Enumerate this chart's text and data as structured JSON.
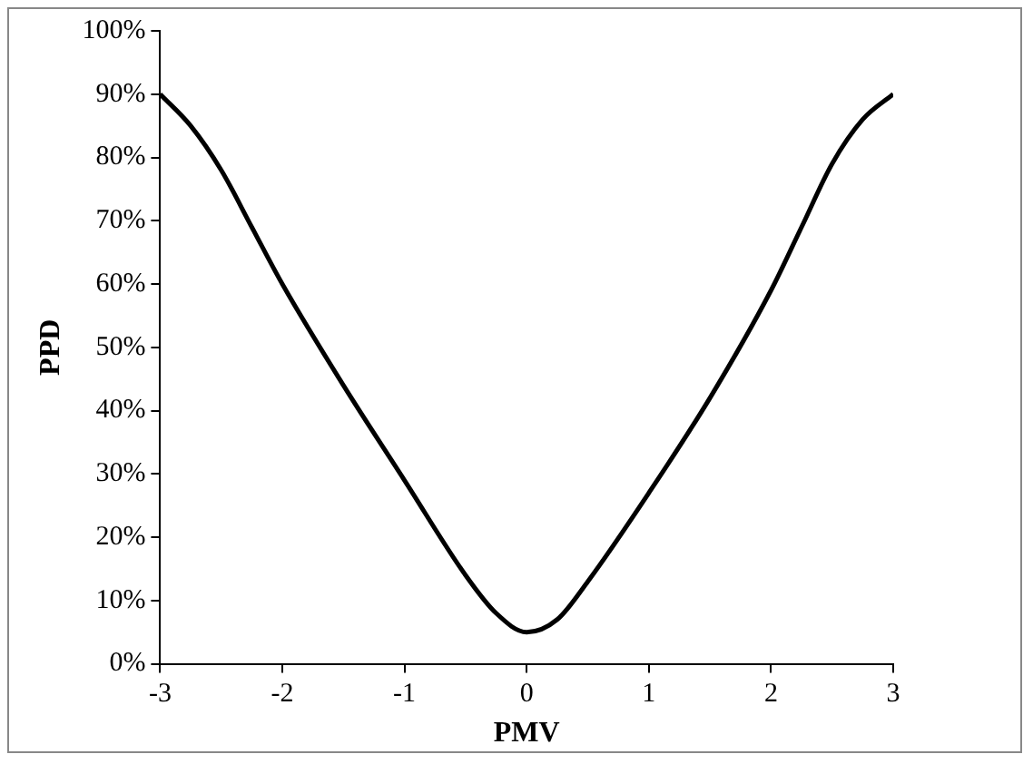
{
  "chart_data": {
    "type": "line",
    "xlabel": "PMV",
    "ylabel": "PPD",
    "x": [
      -3,
      -2.75,
      -2.5,
      -2.25,
      -2,
      -1.5,
      -1,
      -0.5,
      -0.25,
      0,
      0.25,
      0.5,
      1,
      1.5,
      2,
      2.25,
      2.5,
      2.75,
      3
    ],
    "series": [
      {
        "color": "#000000",
        "values": [
          90,
          85,
          78,
          69,
          60,
          44,
          29,
          14,
          8,
          5,
          7,
          13,
          27,
          42,
          59,
          69,
          79,
          86,
          90
        ]
      }
    ],
    "xlim": [
      -3,
      3
    ],
    "xticks": [
      -3,
      -2,
      -1,
      0,
      1,
      2,
      3
    ],
    "ylim": [
      0,
      100
    ],
    "yticks": [
      {
        "value": 0,
        "label": "0%"
      },
      {
        "value": 10,
        "label": "10%"
      },
      {
        "value": 20,
        "label": "20%"
      },
      {
        "value": 30,
        "label": "30%"
      },
      {
        "value": 40,
        "label": "40%"
      },
      {
        "value": 50,
        "label": "50%"
      },
      {
        "value": 60,
        "label": "60%"
      },
      {
        "value": 70,
        "label": "70%"
      },
      {
        "value": 80,
        "label": "80%"
      },
      {
        "value": 90,
        "label": "90%"
      },
      {
        "value": 100,
        "label": "100%"
      }
    ],
    "grid": false,
    "legend": false,
    "marker": "none",
    "line_style": "solid"
  }
}
